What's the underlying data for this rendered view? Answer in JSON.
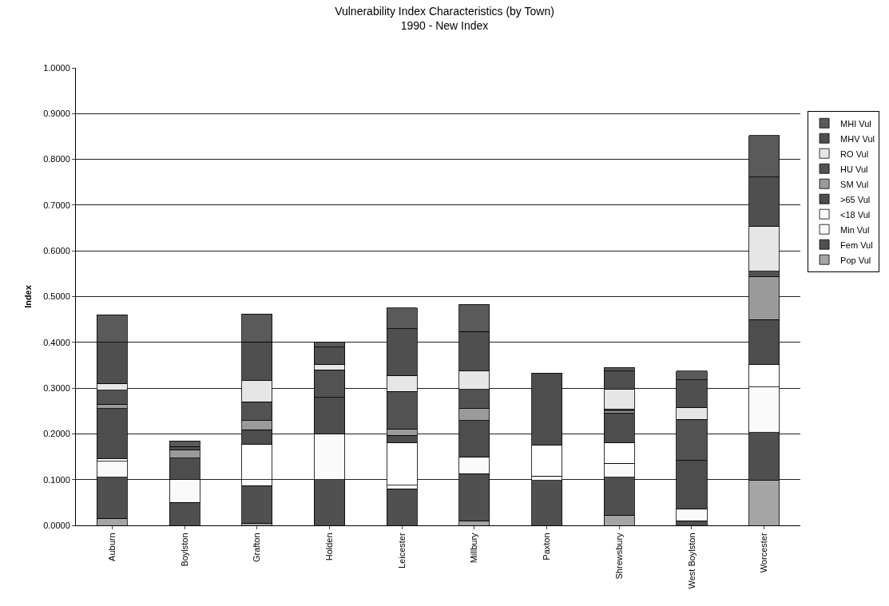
{
  "chart_data": {
    "type": "bar",
    "title": "Vulnerability Index Characteristics (by Town)",
    "subtitle": "1990 - New Index",
    "ylabel": "Index",
    "stacked": true,
    "grid": "y",
    "legend": "right",
    "categories": [
      "Auburn",
      "Boylston",
      "Grafton",
      "Holden",
      "Leicester",
      "Millbury",
      "Paxton",
      "Shrewsbury",
      "West Boylston",
      "Worcester"
    ],
    "ylim": [
      0,
      1
    ],
    "yticks": [
      {
        "value": 0,
        "label": "0.0000"
      },
      {
        "value": 0.1,
        "label": "0.1000"
      },
      {
        "value": 0.2,
        "label": "0.2000"
      },
      {
        "value": 0.3,
        "label": "0.3000"
      },
      {
        "value": 0.4,
        "label": "0.4000"
      },
      {
        "value": 0.5,
        "label": "0.5000"
      },
      {
        "value": 0.6,
        "label": "0.6000"
      },
      {
        "value": 0.7,
        "label": "0.7000"
      },
      {
        "value": 0.8,
        "label": "0.8000"
      },
      {
        "value": 0.9,
        "label": "0.9000"
      },
      {
        "value": 1,
        "label": "1.0000"
      }
    ],
    "series": [
      {
        "name": "Pop Vul",
        "color": "#a5a5a5",
        "values": [
          0.015,
          0,
          0.005,
          0,
          0,
          0.01,
          0,
          0.022,
          0,
          0.098
        ]
      },
      {
        "name": "Fem Vul",
        "color": "#505050",
        "values": [
          0.09,
          0.05,
          0.082,
          0.1,
          0.08,
          0.103,
          0.098,
          0.083,
          0.01,
          0.105
        ]
      },
      {
        "name": "Min Vul",
        "color": "#fafafa",
        "values": [
          0.035,
          0.05,
          0.013,
          0.1,
          0.008,
          0.037,
          0.01,
          0.031,
          0.025,
          0.099
        ]
      },
      {
        "name": "<18 Vul",
        "color": "#ffffff",
        "values": [
          0.005,
          0,
          0.077,
          0,
          0.092,
          0,
          0.067,
          0.044,
          0,
          0.049
        ]
      },
      {
        "name": ">65 Vul",
        "color": "#4d4d4d",
        "values": [
          0.11,
          0.047,
          0.032,
          0.08,
          0.017,
          0.079,
          0.158,
          0.066,
          0.107,
          0.099
        ]
      },
      {
        "name": "SM Vul",
        "color": "#9a9a9a",
        "values": [
          0.01,
          0.018,
          0.02,
          0,
          0.014,
          0.026,
          0,
          0.004,
          0,
          0.093
        ]
      },
      {
        "name": "HU Vul",
        "color": "#525252",
        "values": [
          0.03,
          0.007,
          0.041,
          0.06,
          0.082,
          0.042,
          0,
          0.004,
          0.09,
          0.012
        ]
      },
      {
        "name": "RO Vul",
        "color": "#e6e6e6",
        "values": [
          0.015,
          0,
          0.046,
          0.012,
          0.035,
          0.04,
          0,
          0.043,
          0.026,
          0.099
        ]
      },
      {
        "name": "MHV Vul",
        "color": "#4f4f4f",
        "values": [
          0.09,
          0,
          0.085,
          0.038,
          0.102,
          0.087,
          0,
          0.04,
          0.06,
          0.107
        ]
      },
      {
        "name": "MHI Vul",
        "color": "#5a5a5a",
        "values": [
          0.06,
          0.013,
          0.061,
          0.011,
          0.045,
          0.059,
          0,
          0.008,
          0.019,
          0.091
        ]
      }
    ]
  }
}
